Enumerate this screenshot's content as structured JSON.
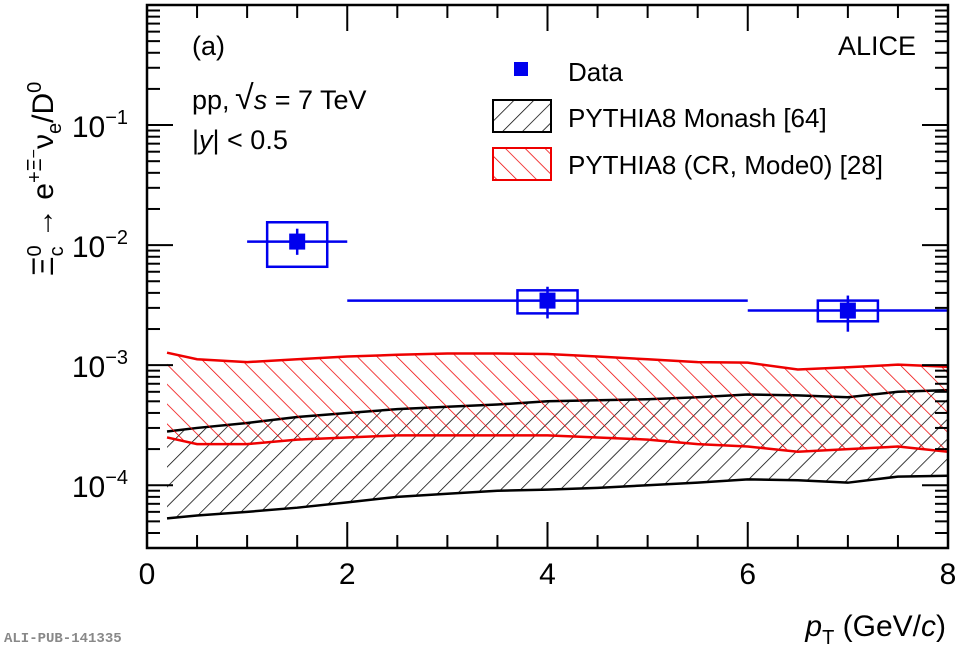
{
  "chart_data": {
    "type": "scatter",
    "panel_label": "(a)",
    "experiment_label": "ALICE",
    "system_label": "pp, √s = 7 TeV",
    "system_prefix": "pp, ",
    "system_s": "s",
    "system_suffix": " = 7 TeV",
    "rapidity_label": "|y| < 0.5",
    "rapidity_y": "y",
    "rapidity_suffix": "| < 0.5",
    "rapidity_prefix": "|",
    "xlabel": "p_T (GeV/c)",
    "xlabel_p": "p",
    "xlabel_sub": "T",
    "xlabel_open": " (GeV/",
    "xlabel_c": "c",
    "xlabel_close": ")",
    "ylabel": "Ξc0 → e+Ξ−νe/D0",
    "ylabel_parts": {
      "xi": "Ξ",
      "xi_sup": "0",
      "xi_sub": "c",
      "arrow": " → e",
      "e_sup": "+",
      "xi2": "Ξ",
      "xi2_sup": "−",
      "nu": "ν",
      "nu_sub": "e",
      "slash_d": "/D",
      "d_sup": "0"
    },
    "x_axis": {
      "range": [
        0,
        8
      ],
      "ticks": [
        0,
        2,
        4,
        6,
        8
      ],
      "tick_labels": [
        "0",
        "2",
        "4",
        "6",
        "8"
      ]
    },
    "y_axis": {
      "scale": "log",
      "range": [
        3e-05,
        1.0
      ],
      "ticks": [
        0.0001,
        0.001,
        0.01,
        0.1
      ],
      "tick_labels": [
        {
          "base": "10",
          "exp": "−4"
        },
        {
          "base": "10",
          "exp": "−3"
        },
        {
          "base": "10",
          "exp": "−2"
        },
        {
          "base": "10",
          "exp": "−1"
        }
      ]
    },
    "legend": {
      "placement": "top-right",
      "entries": [
        {
          "label": "Data",
          "kind": "marker",
          "color": "#0000ee"
        },
        {
          "label": "PYTHIA8 Monash [64]",
          "kind": "hatch-black",
          "color": "#000000"
        },
        {
          "label": "PYTHIA8 (CR, Mode0) [28]",
          "kind": "hatch-red",
          "color": "#ee0000"
        }
      ]
    },
    "series": [
      {
        "name": "Data",
        "color": "#0000ee",
        "points": [
          {
            "x": 1.5,
            "xlo": 1.0,
            "xhi": 2.0,
            "y": 0.0107,
            "stat_lo": 0.0083,
            "stat_hi": 0.0137,
            "sys_xlo": 1.2,
            "sys_xhi": 1.8,
            "sys_lo": 0.0066,
            "sys_hi": 0.0155
          },
          {
            "x": 4.0,
            "xlo": 2.0,
            "xhi": 6.0,
            "y": 0.00345,
            "stat_lo": 0.00245,
            "stat_hi": 0.0045,
            "sys_xlo": 3.7,
            "sys_xhi": 4.3,
            "sys_lo": 0.0027,
            "sys_hi": 0.0042
          },
          {
            "x": 7.0,
            "xlo": 6.0,
            "xhi": 8.0,
            "y": 0.00285,
            "stat_lo": 0.0019,
            "stat_hi": 0.0038,
            "sys_xlo": 6.7,
            "sys_xhi": 7.3,
            "sys_lo": 0.00232,
            "sys_hi": 0.00345
          }
        ]
      },
      {
        "name": "PYTHIA8 Monash [64]",
        "color": "#000000",
        "x": [
          0.2,
          0.5,
          1.0,
          1.5,
          2.0,
          2.5,
          3.0,
          3.5,
          4.0,
          4.5,
          5.0,
          5.5,
          6.0,
          6.5,
          7.0,
          7.5,
          8.0
        ],
        "upper": [
          0.00028,
          0.0003,
          0.00033,
          0.00037,
          0.0004,
          0.00043,
          0.00045,
          0.00047,
          0.0005,
          0.00051,
          0.00052,
          0.00054,
          0.00057,
          0.00056,
          0.00054,
          0.0006,
          0.00062
        ],
        "lower": [
          5.3e-05,
          5.6e-05,
          6e-05,
          6.5e-05,
          7.2e-05,
          8e-05,
          8.5e-05,
          9e-05,
          9.2e-05,
          9.5e-05,
          0.0001,
          0.000105,
          0.000112,
          0.00011,
          0.000105,
          0.000118,
          0.00012
        ]
      },
      {
        "name": "PYTHIA8 (CR, Mode0) [28]",
        "color": "#ee0000",
        "x": [
          0.2,
          0.5,
          1.0,
          1.5,
          2.0,
          2.5,
          3.0,
          3.5,
          4.0,
          4.5,
          5.0,
          5.5,
          6.0,
          6.5,
          7.0,
          7.5,
          8.0
        ],
        "upper": [
          0.00127,
          0.00112,
          0.00106,
          0.00112,
          0.00118,
          0.00122,
          0.00125,
          0.00125,
          0.00124,
          0.00118,
          0.00112,
          0.00106,
          0.00105,
          0.00092,
          0.00096,
          0.00101,
          0.00097
        ],
        "lower": [
          0.00025,
          0.00022,
          0.00022,
          0.00024,
          0.00025,
          0.00026,
          0.00026,
          0.00026,
          0.00026,
          0.00025,
          0.00024,
          0.00022,
          0.00021,
          0.00019,
          0.0002,
          0.00021,
          0.00019
        ]
      }
    ]
  },
  "footer": {
    "id_label": "ALI-PUB-141335"
  }
}
